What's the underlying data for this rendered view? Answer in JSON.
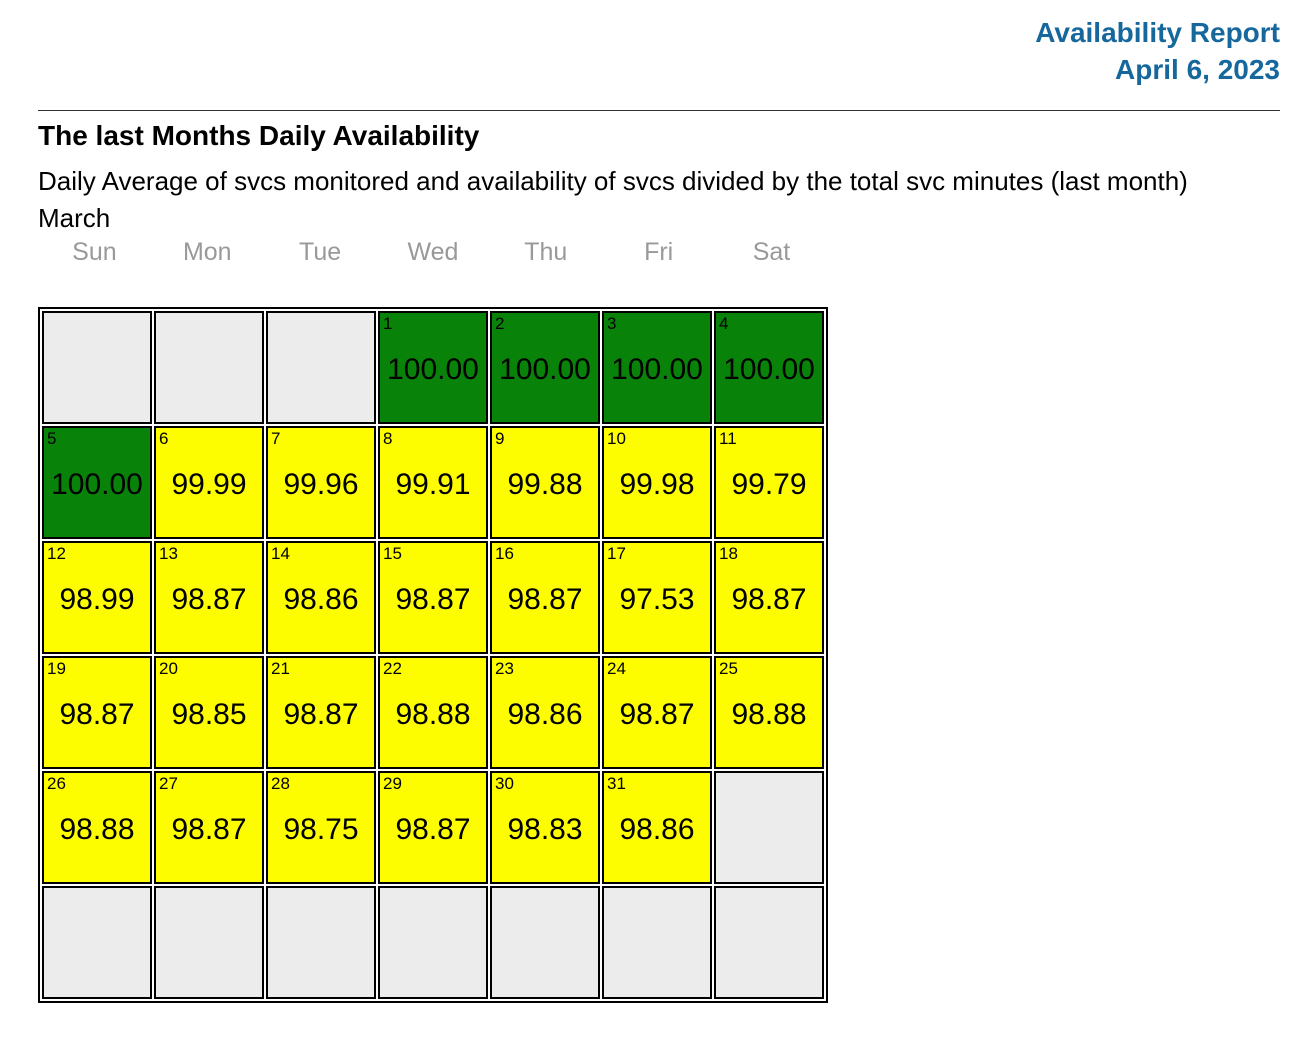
{
  "header": {
    "title": "Availability Report",
    "date": "April 6, 2023"
  },
  "section": {
    "heading": "The last Months Daily Availability",
    "description": "Daily Average of svcs monitored and availability of svcs divided by the total svc minutes (last month)",
    "month": "March"
  },
  "colors": {
    "accent": "#16689c",
    "muted_text": "#999999",
    "divider": "#333333",
    "cell_full": "#088208",
    "cell_partial": "#fdfd00",
    "cell_empty": "#ececec",
    "cell_border": "#000000"
  },
  "calendar": {
    "weekdays": [
      "Sun",
      "Mon",
      "Tue",
      "Wed",
      "Thu",
      "Fri",
      "Sat"
    ],
    "weeks": [
      [
        {
          "day": "",
          "value": "",
          "state": "empty"
        },
        {
          "day": "",
          "value": "",
          "state": "empty"
        },
        {
          "day": "",
          "value": "",
          "state": "empty"
        },
        {
          "day": "1",
          "value": "100.00",
          "state": "full"
        },
        {
          "day": "2",
          "value": "100.00",
          "state": "full"
        },
        {
          "day": "3",
          "value": "100.00",
          "state": "full"
        },
        {
          "day": "4",
          "value": "100.00",
          "state": "full"
        }
      ],
      [
        {
          "day": "5",
          "value": "100.00",
          "state": "full"
        },
        {
          "day": "6",
          "value": "99.99",
          "state": "partial"
        },
        {
          "day": "7",
          "value": "99.96",
          "state": "partial"
        },
        {
          "day": "8",
          "value": "99.91",
          "state": "partial"
        },
        {
          "day": "9",
          "value": "99.88",
          "state": "partial"
        },
        {
          "day": "10",
          "value": "99.98",
          "state": "partial"
        },
        {
          "day": "11",
          "value": "99.79",
          "state": "partial"
        }
      ],
      [
        {
          "day": "12",
          "value": "98.99",
          "state": "partial"
        },
        {
          "day": "13",
          "value": "98.87",
          "state": "partial"
        },
        {
          "day": "14",
          "value": "98.86",
          "state": "partial"
        },
        {
          "day": "15",
          "value": "98.87",
          "state": "partial"
        },
        {
          "day": "16",
          "value": "98.87",
          "state": "partial"
        },
        {
          "day": "17",
          "value": "97.53",
          "state": "partial"
        },
        {
          "day": "18",
          "value": "98.87",
          "state": "partial"
        }
      ],
      [
        {
          "day": "19",
          "value": "98.87",
          "state": "partial"
        },
        {
          "day": "20",
          "value": "98.85",
          "state": "partial"
        },
        {
          "day": "21",
          "value": "98.87",
          "state": "partial"
        },
        {
          "day": "22",
          "value": "98.88",
          "state": "partial"
        },
        {
          "day": "23",
          "value": "98.86",
          "state": "partial"
        },
        {
          "day": "24",
          "value": "98.87",
          "state": "partial"
        },
        {
          "day": "25",
          "value": "98.88",
          "state": "partial"
        }
      ],
      [
        {
          "day": "26",
          "value": "98.88",
          "state": "partial"
        },
        {
          "day": "27",
          "value": "98.87",
          "state": "partial"
        },
        {
          "day": "28",
          "value": "98.75",
          "state": "partial"
        },
        {
          "day": "29",
          "value": "98.87",
          "state": "partial"
        },
        {
          "day": "30",
          "value": "98.83",
          "state": "partial"
        },
        {
          "day": "31",
          "value": "98.86",
          "state": "partial"
        },
        {
          "day": "",
          "value": "",
          "state": "empty"
        }
      ],
      [
        {
          "day": "",
          "value": "",
          "state": "empty"
        },
        {
          "day": "",
          "value": "",
          "state": "empty"
        },
        {
          "day": "",
          "value": "",
          "state": "empty"
        },
        {
          "day": "",
          "value": "",
          "state": "empty"
        },
        {
          "day": "",
          "value": "",
          "state": "empty"
        },
        {
          "day": "",
          "value": "",
          "state": "empty"
        },
        {
          "day": "",
          "value": "",
          "state": "empty"
        }
      ]
    ]
  }
}
